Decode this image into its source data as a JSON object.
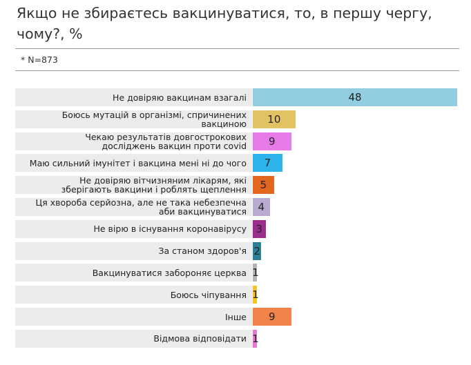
{
  "chart_data": {
    "type": "bar",
    "orientation": "horizontal",
    "title": "Якщо не збираєтесь вакцинуватися, то, в першу чергу, чому?, %",
    "subtitle": "* N=873",
    "categories": [
      "Не довіряю вакцинам взагалі",
      "Боюсь мутацій в організмі, спричинених\nвакциною",
      "Чекаю результатів довгострокових\nдосліджень вакцин проти covid",
      "Маю сильний імунітет і вакцина мені ні до чого",
      "Не довіряю вітчизняним лікарям, які\nзберігають вакцини і роблять щеплення",
      "Ця хвороба серйозна, але не така небезпечна\nаби вакцинуватися",
      "Не вірю в існування коронавірусу",
      "За станом здоров'я",
      "Вакцинуватися забороняє церква",
      "Боюсь чіпування",
      "Інше",
      "Відмова відповідати"
    ],
    "values": [
      48,
      10,
      9,
      7,
      5,
      4,
      3,
      2,
      1,
      1,
      9,
      1
    ],
    "colors": [
      "#93cde1",
      "#e3c264",
      "#e67ae8",
      "#2bb3ea",
      "#e2661e",
      "#b9aad2",
      "#9b2d8c",
      "#2a7e96",
      "#b3b3b3",
      "#f2c323",
      "#f2834a",
      "#e37ad0"
    ]
  }
}
